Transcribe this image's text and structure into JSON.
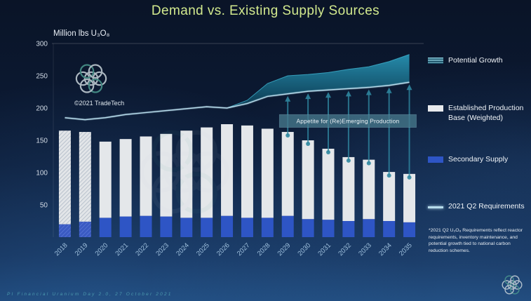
{
  "header": {
    "title": "Demand vs. Existing Supply Sources"
  },
  "branding": {
    "copyright": "©2021 TradeTech"
  },
  "footer": {
    "text": "PI Financial Uranium Day 2.0, 27 October 2021"
  },
  "legend": {
    "footnote": "*2021 Q2 U₃O₈ Requirements reflect reactor requirements, inventory maintenance, and potential growth tied to national carbon reduction schemes."
  },
  "chart_data": {
    "type": "combo",
    "title": "Demand vs. Existing Supply Sources",
    "ylabel": "Million lbs U₃O₈",
    "ylim": [
      0,
      300
    ],
    "yticks": [
      50,
      100,
      150,
      200,
      250,
      300
    ],
    "categories": [
      "2018",
      "2019",
      "2020",
      "2021",
      "2022",
      "2023",
      "2024",
      "2025",
      "2026",
      "2027",
      "2028",
      "2029",
      "2030",
      "2031",
      "2032",
      "2033",
      "2034",
      "2035"
    ],
    "hatched_category_indices": [
      0,
      1
    ],
    "series": [
      {
        "name": "Secondary Supply",
        "type": "bar",
        "stack": true,
        "color": "#2e55c5",
        "values": [
          20,
          24,
          30,
          32,
          33,
          32,
          30,
          30,
          33,
          30,
          30,
          33,
          28,
          27,
          25,
          28,
          25,
          23
        ]
      },
      {
        "name": "Established Production Base (Weighted)",
        "type": "bar",
        "stack": true,
        "color": "#e4e7ea",
        "values": [
          145,
          139,
          118,
          120,
          123,
          128,
          135,
          140,
          142,
          143,
          138,
          130,
          122,
          110,
          99,
          92,
          76,
          75
        ]
      },
      {
        "name": "2021 Q2 Requirements",
        "type": "line",
        "color": "#b7dcec",
        "values": [
          185,
          182,
          185,
          190,
          193,
          196,
          199,
          202,
          200,
          207,
          218,
          222,
          226,
          228,
          230,
          232,
          235,
          240
        ]
      },
      {
        "name": "Potential Growth",
        "type": "band",
        "upper": [
          null,
          null,
          null,
          null,
          null,
          null,
          null,
          null,
          200,
          212,
          238,
          250,
          252,
          255,
          260,
          264,
          272,
          283
        ]
      }
    ],
    "arrow_year_indices": [
      11,
      12,
      13,
      14,
      15,
      16,
      17
    ],
    "annotation": {
      "text": "Appetite for (Re)Emerging Production",
      "from_index": 11,
      "to_index": 17,
      "y_top": 190,
      "y_bottom": 170
    },
    "legend_position": "right",
    "grid": false
  }
}
